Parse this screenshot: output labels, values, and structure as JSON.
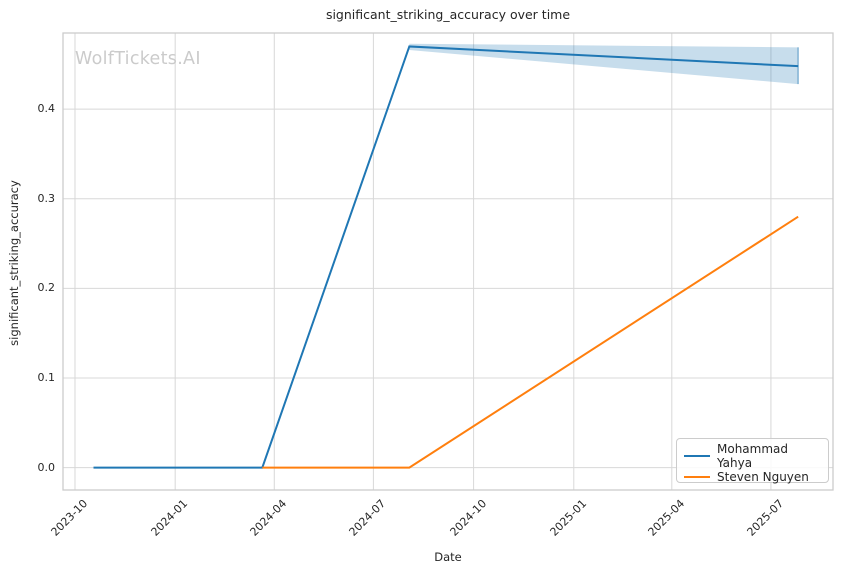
{
  "chart_data": {
    "type": "line",
    "title": "significant_striking_accuracy over time",
    "xlabel": "Date",
    "ylabel": "significant_striking_accuracy",
    "watermark": "WolfTickets.AI",
    "grid": true,
    "legend_position": "lower right",
    "x_tick_labels": [
      "2023-10",
      "2024-01",
      "2024-04",
      "2024-07",
      "2024-10",
      "2025-01",
      "2025-04",
      "2025-07"
    ],
    "y_tick_labels": [
      "0.0",
      "0.1",
      "0.2",
      "0.3",
      "0.4"
    ],
    "y_ticks": [
      0.0,
      0.1,
      0.2,
      0.3,
      0.4
    ],
    "xlim": [
      "2023-09-20",
      "2025-08-27"
    ],
    "ylim": [
      -0.025,
      0.485
    ],
    "colors": {
      "grid": "#d8d8d8",
      "spine": "#cccccc",
      "text": "#262626",
      "watermark": "#cbcbcb"
    },
    "series": [
      {
        "name": "Mohammad Yahya",
        "color": "#1f77b4",
        "points": [
          [
            "2023-10-18",
            0.0
          ],
          [
            "2024-03-21",
            0.0
          ],
          [
            "2024-08-03",
            0.47
          ],
          [
            "2025-07-26",
            0.448
          ]
        ],
        "error_bar": {
          "date": "2025-07-26",
          "low": 0.428,
          "high": 0.469
        },
        "ci_band": {
          "x": [
            "2024-08-03",
            "2025-07-26"
          ],
          "upper": [
            0.473,
            0.469
          ],
          "lower": [
            0.466,
            0.428
          ]
        }
      },
      {
        "name": "Steven Nguyen",
        "color": "#ff7f0e",
        "points": [
          [
            "2024-03-21",
            0.0
          ],
          [
            "2024-08-03",
            0.0
          ],
          [
            "2025-07-26",
            0.28
          ]
        ]
      }
    ]
  }
}
